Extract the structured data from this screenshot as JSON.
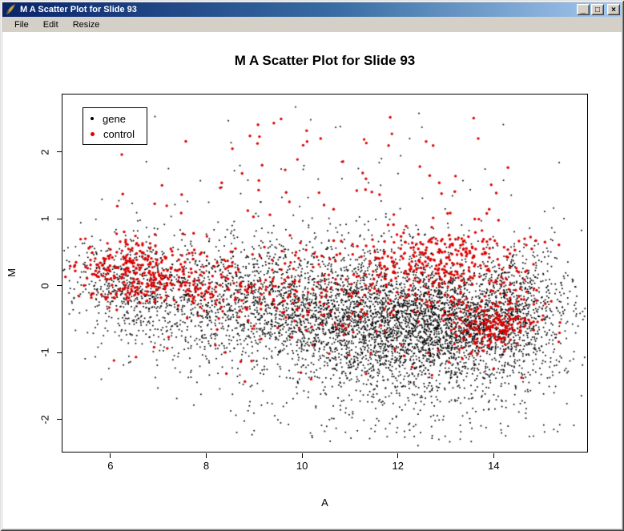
{
  "window": {
    "title": "M A Scatter Plot for Slide 93",
    "buttons": {
      "minimize": "_",
      "maximize": "□",
      "close": "×"
    },
    "menu": [
      "File",
      "Edit",
      "Resize"
    ]
  },
  "colors": {
    "titlebar_gradient_start": "#0a246a",
    "titlebar_gradient_end": "#a6caf0",
    "chrome": "#d4d0c8",
    "plot_background": "#ffffff",
    "gene_color": "#000000",
    "control_color": "#dd0000"
  },
  "chart_data": {
    "type": "scatter",
    "title": "M A Scatter Plot for Slide 93",
    "xlabel": "A",
    "ylabel": "M",
    "xlim": [
      5.0,
      15.95
    ],
    "ylim": [
      -2.48,
      2.86
    ],
    "x_ticks": [
      6,
      8,
      10,
      12,
      14
    ],
    "y_ticks": [
      -2,
      -1,
      0,
      1,
      2
    ],
    "grid": false,
    "seed": 7,
    "legend": {
      "position": "top-left",
      "entries": [
        {
          "label": "gene",
          "color": "#000000"
        },
        {
          "label": "control",
          "color": "#dd0000"
        }
      ]
    },
    "series": [
      {
        "name": "gene",
        "color": "#000000",
        "marker": "square",
        "marker_size": 1.7,
        "clusters": [
          {
            "n": 350,
            "dist": "normal",
            "a": [
              6.3,
              0.55
            ],
            "m": [
              0.05,
              0.38
            ]
          },
          {
            "n": 550,
            "dist": "normal",
            "a": [
              7.6,
              0.85
            ],
            "m": [
              -0.1,
              0.4
            ]
          },
          {
            "n": 900,
            "dist": "normal",
            "a": [
              9.6,
              1.0
            ],
            "m": [
              -0.28,
              0.42
            ]
          },
          {
            "n": 1500,
            "dist": "normal",
            "a": [
              11.6,
              1.1
            ],
            "m": [
              -0.5,
              0.42
            ]
          },
          {
            "n": 1300,
            "dist": "normal",
            "a": [
              13.1,
              0.85
            ],
            "m": [
              -0.55,
              0.4
            ]
          },
          {
            "n": 550,
            "dist": "normal",
            "a": [
              14.4,
              0.55
            ],
            "m": [
              -0.45,
              0.45
            ]
          },
          {
            "n": 130,
            "dist": "normal",
            "a": [
              15.0,
              0.35
            ],
            "m": [
              -0.15,
              0.5
            ]
          },
          {
            "n": 450,
            "dist": "normal",
            "a": [
              10.8,
              2.3
            ],
            "m": [
              0.25,
              0.55
            ]
          },
          {
            "n": 550,
            "dist": "normal",
            "a": [
              12.2,
              1.7
            ],
            "m": [
              -1.25,
              0.42
            ]
          },
          {
            "n": 60,
            "dist": "normal",
            "a": [
              6.8,
              0.8
            ],
            "m": [
              -0.85,
              0.35
            ]
          },
          {
            "n": 70,
            "dist": "uniform",
            "a": [
              8.5,
              14.8
            ],
            "m": [
              -2.35,
              -1.6
            ]
          },
          {
            "n": 28,
            "dist": "uniform",
            "a": [
              6.5,
              14.5
            ],
            "m": [
              1.1,
              2.7
            ]
          }
        ]
      },
      {
        "name": "control",
        "color": "#dd0000",
        "marker": "circle",
        "marker_size": 3.4,
        "clusters": [
          {
            "n": 200,
            "dist": "normal",
            "a": [
              6.4,
              0.55
            ],
            "m": [
              0.22,
              0.25
            ]
          },
          {
            "n": 150,
            "dist": "normal",
            "a": [
              7.5,
              0.8
            ],
            "m": [
              0.08,
              0.3
            ]
          },
          {
            "n": 110,
            "dist": "normal",
            "a": [
              9.3,
              1.0
            ],
            "m": [
              -0.05,
              0.35
            ]
          },
          {
            "n": 100,
            "dist": "normal",
            "a": [
              11.0,
              0.9
            ],
            "m": [
              -0.1,
              0.38
            ]
          },
          {
            "n": 260,
            "dist": "normal",
            "a": [
              12.9,
              0.85
            ],
            "m": [
              0.4,
              0.24
            ]
          },
          {
            "n": 130,
            "dist": "normal",
            "a": [
              14.0,
              0.3
            ],
            "m": [
              -0.62,
              0.16
            ]
          },
          {
            "n": 90,
            "dist": "normal",
            "a": [
              13.6,
              0.8
            ],
            "m": [
              -0.35,
              0.35
            ]
          },
          {
            "n": 40,
            "dist": "normal",
            "a": [
              14.6,
              0.4
            ],
            "m": [
              -0.35,
              0.4
            ]
          },
          {
            "n": 55,
            "dist": "uniform",
            "a": [
              8.5,
              14.4
            ],
            "m": [
              1.0,
              2.55
            ]
          },
          {
            "n": 10,
            "dist": "uniform",
            "a": [
              6.0,
              8.5
            ],
            "m": [
              1.0,
              2.2
            ]
          },
          {
            "n": 18,
            "dist": "uniform",
            "a": [
              6.0,
              13.5
            ],
            "m": [
              -1.45,
              -0.85
            ]
          }
        ]
      }
    ]
  }
}
